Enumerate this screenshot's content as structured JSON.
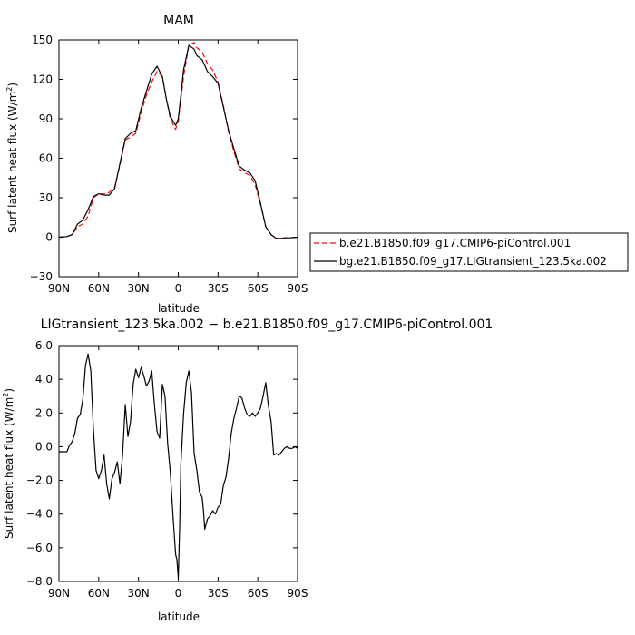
{
  "chart_data": [
    {
      "type": "line",
      "title": "MAM",
      "xlabel": "latitude",
      "ylabel": "Surf latent heat flux (W/m²)",
      "ylabel_parts": {
        "main": "Surf latent heat flux (W/m",
        "sup": "2",
        "end": ")"
      },
      "xlim": [
        90,
        -90
      ],
      "ylim": [
        -30,
        150
      ],
      "x_ticks": [
        90,
        60,
        30,
        0,
        -30,
        -60,
        -90
      ],
      "x_tick_labels": [
        "90N",
        "60N",
        "30N",
        "0",
        "30S",
        "60S",
        "90S"
      ],
      "y_ticks": [
        -30,
        0,
        30,
        60,
        90,
        120,
        150
      ],
      "y_tick_labels": [
        "−30",
        "0",
        "30",
        "60",
        "90",
        "120",
        "150"
      ],
      "legend": "right, outside",
      "series": [
        {
          "name": "b.e21.B1850.f09_g17.CMIP6-piControl.001",
          "color": "#ff0000",
          "dash": "dashed",
          "x": [
            90,
            84,
            80,
            76,
            72,
            68,
            64,
            60,
            56,
            52,
            48,
            44,
            40,
            36,
            32,
            28,
            24,
            20,
            16,
            12,
            9,
            6,
            2,
            0,
            -2,
            -4,
            -8,
            -12,
            -14,
            -18,
            -22,
            -26,
            -30,
            -34,
            -38,
            -42,
            -46,
            -50,
            -54,
            -58,
            -62,
            -66,
            -70,
            -74,
            -78,
            -80,
            -84,
            -90
          ],
          "y": [
            0,
            0.5,
            2,
            8,
            10,
            16,
            30,
            33,
            33,
            34,
            38,
            55,
            74,
            76,
            79,
            95,
            108,
            118,
            126,
            122,
            105,
            90,
            82,
            88,
            105,
            122,
            146,
            148,
            144,
            141,
            132,
            127,
            118,
            100,
            80,
            65,
            52,
            49,
            47,
            40,
            25,
            8,
            2,
            -1,
            -1,
            -0.5,
            -0.5,
            0
          ]
        },
        {
          "name": "bg.e21.B1850.f09_g17.LIGtransient_123.5ka.002",
          "color": "#000000",
          "dash": "solid",
          "x": [
            90,
            84,
            80,
            76,
            72,
            68,
            64,
            60,
            56,
            52,
            48,
            44,
            40,
            36,
            32,
            28,
            24,
            20,
            16,
            12,
            9,
            6,
            2,
            0,
            -2,
            -4,
            -8,
            -12,
            -14,
            -18,
            -22,
            -26,
            -30,
            -34,
            -38,
            -42,
            -46,
            -50,
            -54,
            -58,
            -62,
            -66,
            -70,
            -74,
            -78,
            -80,
            -84,
            -90
          ],
          "y": [
            0,
            0.5,
            2,
            10,
            13,
            21,
            31,
            33,
            32,
            32,
            37,
            56,
            75,
            79,
            81,
            98,
            111,
            124,
            130,
            122,
            105,
            92,
            85,
            90,
            108,
            127,
            146,
            143,
            138,
            135,
            126,
            122,
            117,
            99,
            81,
            67,
            54,
            51,
            49,
            43,
            26,
            8,
            2,
            -1,
            -1,
            -0.5,
            -0.5,
            0
          ]
        }
      ]
    },
    {
      "type": "line",
      "title": "LIGtransient_123.5ka.002 − b.e21.B1850.f09_g17.CMIP6-piControl.001",
      "xlabel": "latitude",
      "ylabel": "Surf latent heat flux (W/m²)",
      "ylabel_parts": {
        "main": "Surf latent heat flux (W/m",
        "sup": "2",
        "end": ")"
      },
      "xlim": [
        90,
        -90
      ],
      "ylim": [
        -8,
        6
      ],
      "x_ticks": [
        90,
        60,
        30,
        0,
        -30,
        -60,
        -90
      ],
      "x_tick_labels": [
        "90N",
        "60N",
        "30N",
        "0",
        "30S",
        "60S",
        "90S"
      ],
      "y_ticks": [
        -8,
        -6,
        -4,
        -2,
        0,
        2,
        4,
        6
      ],
      "y_tick_labels": [
        "−8.0",
        "−6.0",
        "−4.0",
        "−2.0",
        "0.0",
        "2.0",
        "4.0",
        "6.0"
      ],
      "series": [
        {
          "name": "",
          "color": "#000000",
          "dash": "solid",
          "x": [
            90,
            84,
            82,
            80,
            78,
            76,
            74,
            72,
            70,
            68,
            66,
            64,
            62,
            60,
            58,
            56,
            54,
            52,
            50,
            48,
            46,
            44,
            42,
            40,
            38,
            36,
            34,
            32,
            30,
            28,
            26,
            24,
            22,
            20,
            18,
            16,
            14,
            12,
            10,
            8,
            6,
            4,
            3,
            2,
            1,
            0,
            -1,
            -2,
            -4,
            -6,
            -8,
            -10,
            -12,
            -14,
            -16,
            -18,
            -19,
            -20,
            -22,
            -24,
            -26,
            -28,
            -30,
            -32,
            -34,
            -36,
            -38,
            -40,
            -42,
            -44,
            -46,
            -48,
            -50,
            -52,
            -54,
            -56,
            -58,
            -60,
            -62,
            -64,
            -66,
            -68,
            -70,
            -72,
            -74,
            -76,
            -78,
            -80,
            -82,
            -84,
            -86,
            -88,
            -90
          ],
          "y": [
            -0.3,
            -0.3,
            0.1,
            0.3,
            0.8,
            1.7,
            1.9,
            2.8,
            4.8,
            5.5,
            4.5,
            1.0,
            -1.4,
            -1.9,
            -1.4,
            -0.5,
            -2.2,
            -3.1,
            -1.9,
            -1.5,
            -0.9,
            -2.2,
            -0.5,
            2.5,
            0.6,
            1.5,
            3.7,
            4.6,
            4.1,
            4.7,
            4.2,
            3.6,
            3.9,
            4.5,
            2.5,
            0.9,
            0.5,
            3.7,
            3.0,
            0.2,
            -1.5,
            -4.1,
            -5.2,
            -6.4,
            -6.7,
            -7.8,
            -4.8,
            -1.0,
            1.9,
            3.8,
            4.5,
            3.2,
            -0.4,
            -1.4,
            -2.7,
            -3.0,
            -3.8,
            -4.9,
            -4.3,
            -4.1,
            -3.8,
            -4.0,
            -3.6,
            -3.4,
            -2.3,
            -1.8,
            -0.7,
            0.8,
            1.7,
            2.3,
            3.0,
            2.9,
            2.3,
            1.9,
            1.8,
            2.0,
            1.8,
            2.0,
            2.3,
            3.0,
            3.8,
            2.4,
            1.5,
            -0.5,
            -0.4,
            -0.5,
            -0.3,
            -0.1,
            0.0,
            -0.1,
            -0.1,
            0.0,
            -0.1
          ]
        }
      ]
    }
  ]
}
